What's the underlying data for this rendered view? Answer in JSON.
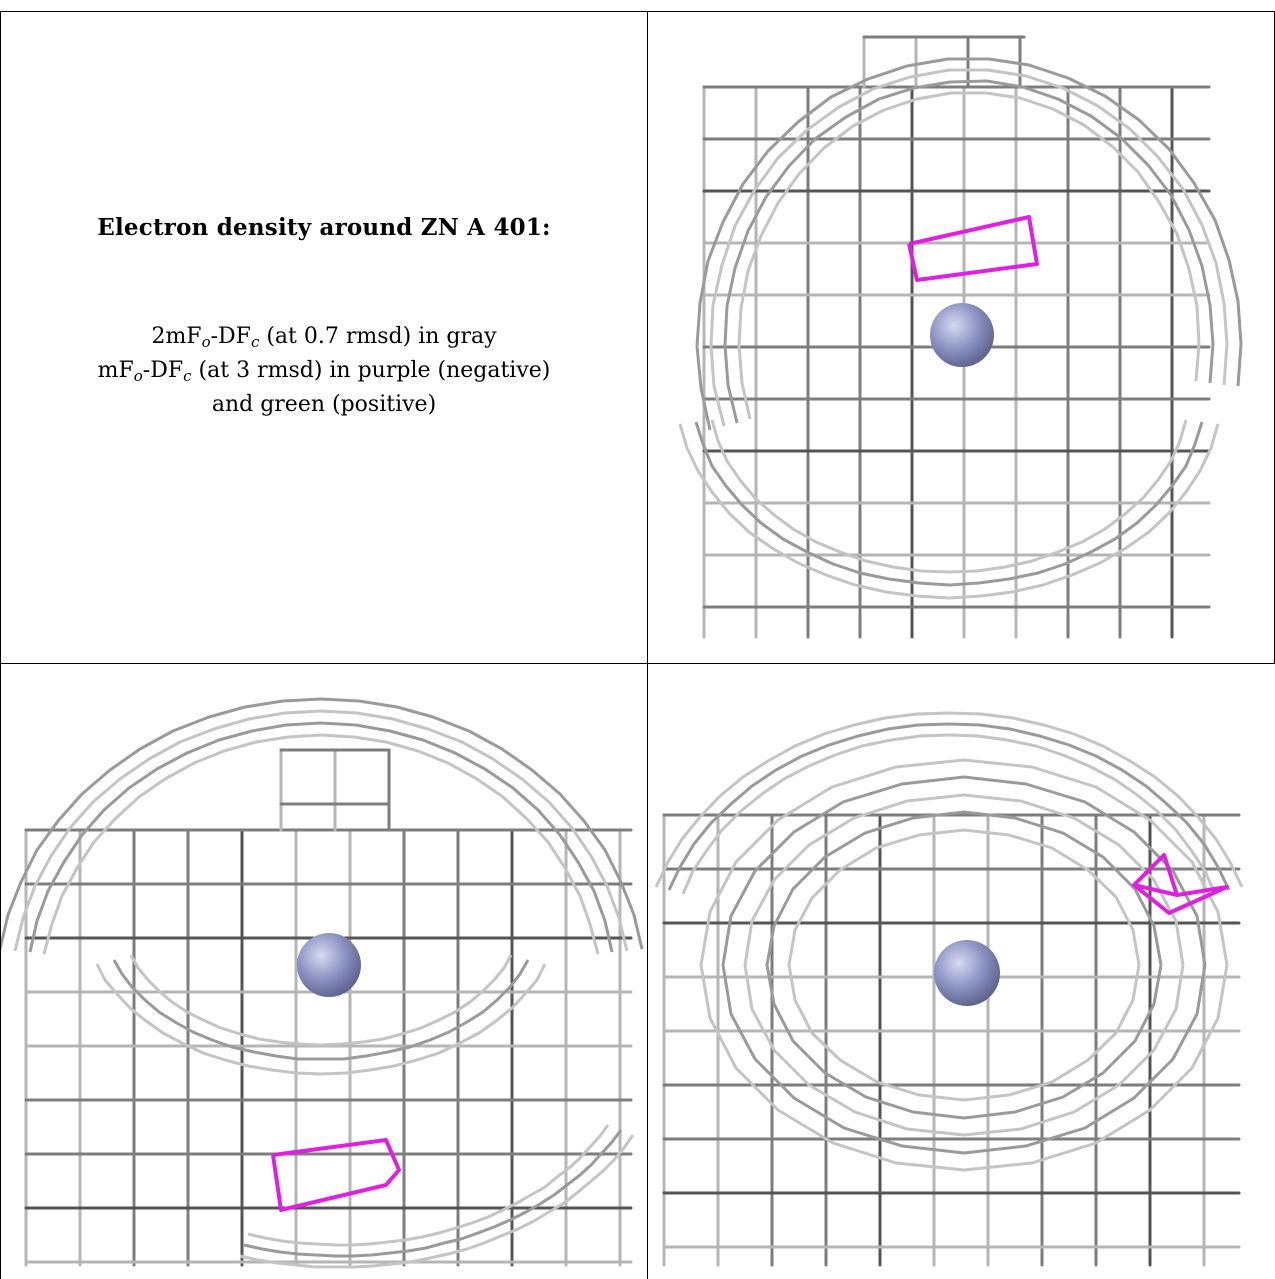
{
  "legend": {
    "title": "Electron density around ZN A 401:",
    "line1": {
      "a": "2mF",
      "a_sub": "o",
      "b": "-DF",
      "b_sub": "c",
      "c": " (at 0.7 rmsd) in gray"
    },
    "line2": {
      "a": "mF",
      "a_sub": "o",
      "b": "-DF",
      "b_sub": "c",
      "c": " (at 3 rmsd) in purple (negative)"
    },
    "line3": "and green (positive)"
  },
  "colors": {
    "mesh_gray": "#8a8a8a",
    "mesh_dark": "#4a4a4a",
    "negative_density": "#e020e0",
    "zinc_atom": "#8a90c0",
    "border": "#000000"
  },
  "panels": [
    {
      "name": "view-1",
      "atom": "ZN A 401",
      "negative_blobs": 1
    },
    {
      "name": "view-2",
      "atom": "ZN A 401",
      "negative_blobs": 1
    },
    {
      "name": "view-3",
      "atom": "ZN A 401",
      "negative_blobs": 1
    }
  ]
}
